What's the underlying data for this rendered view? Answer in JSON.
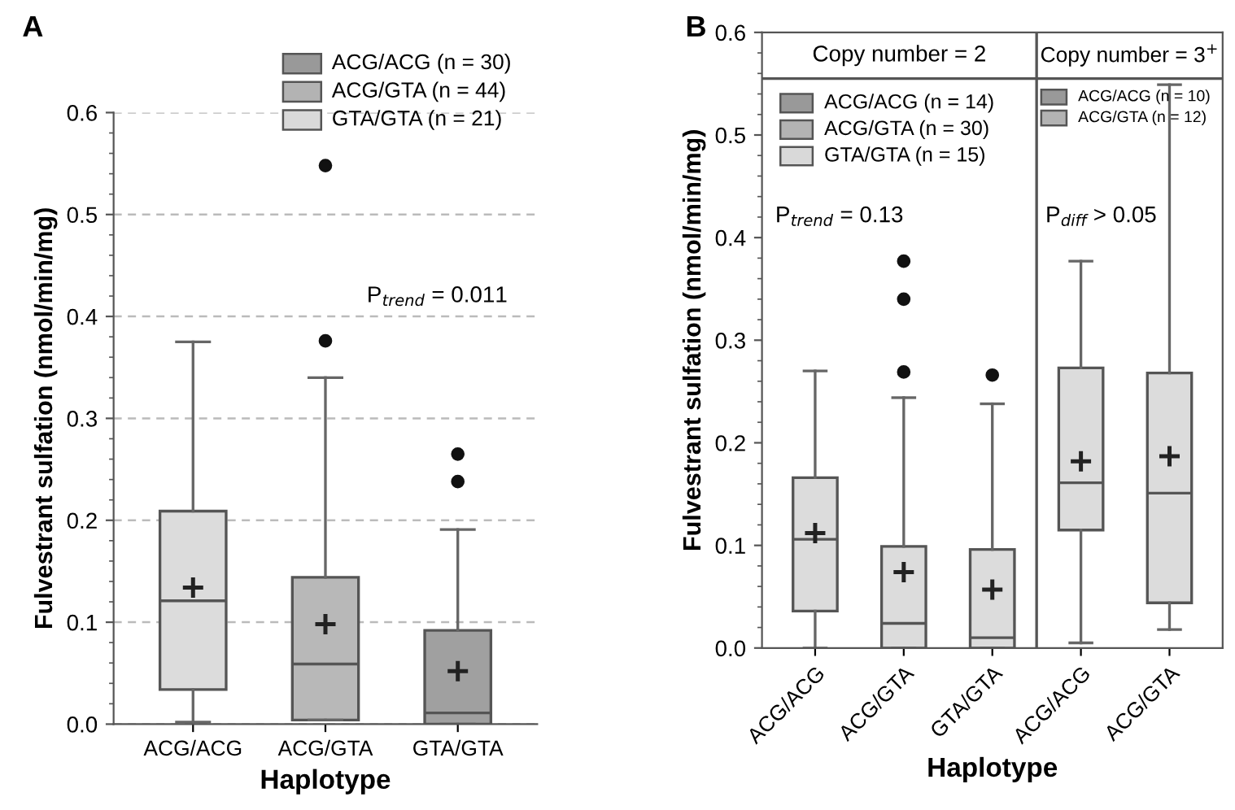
{
  "chart_data": [
    {
      "type": "box",
      "title": "A",
      "xlabel": "Haplotype",
      "ylabel": "Fulvestrant sulfation (nmol/min/mg)",
      "categories": [
        "ACG/ACG",
        "ACG/GTA",
        "GTA/GTA"
      ],
      "boxes": [
        {
          "low": 0.002,
          "q1": 0.034,
          "median": 0.121,
          "q3": 0.209,
          "high": 0.375,
          "mean": 0.134
        },
        {
          "low": 0.004,
          "q1": 0.004,
          "median": 0.059,
          "q3": 0.144,
          "high": 0.34,
          "mean": 0.098,
          "outliers": [
            0.376,
            0.548
          ]
        },
        {
          "low": 0.0,
          "q1": 0.0,
          "median": 0.011,
          "q3": 0.092,
          "high": 0.191,
          "mean": 0.052,
          "outliers": [
            0.238,
            0.265
          ]
        }
      ],
      "colors": [
        "#dcdcdc",
        "#b8b8b8",
        "#a0a0a0"
      ],
      "annotations": [
        "ACG/ACG (n = 30)",
        "ACG/GTA (n = 44)",
        "GTA/GTA (n = 21)",
        "P$_{trend}$ = 0.011"
      ],
      "ylim": [
        0,
        0.6
      ],
      "yticks": [
        {
          "value": 0,
          "label": "0.0"
        },
        0.1,
        0.2,
        0.3,
        0.4,
        0.5,
        0.6
      ],
      "grid": "y"
    },
    {
      "type": "box",
      "title": "B",
      "xlabel": "Haplotype",
      "ylabel": "Fulvestrant sulfation (nmol/min/mg)",
      "categories": [
        "ACG/ACG",
        "ACG/GTA",
        "GTA/GTA",
        "ACG/ACG",
        "ACG/GTA"
      ],
      "boxes": [
        {
          "low": 0.0,
          "q1": 0.036,
          "median": 0.106,
          "q3": 0.166,
          "high": 0.27,
          "mean": 0.112
        },
        {
          "low": 0.0,
          "q1": 0.0,
          "median": 0.024,
          "q3": 0.099,
          "high": 0.244,
          "mean": 0.074,
          "outliers": [
            0.269,
            0.34,
            0.377
          ]
        },
        {
          "low": 0.0,
          "q1": 0.0,
          "median": 0.01,
          "q3": 0.096,
          "high": 0.238,
          "mean": 0.057,
          "outliers": [
            0.266
          ]
        },
        {
          "low": 0.005,
          "q1": 0.115,
          "median": 0.161,
          "q3": 0.273,
          "high": 0.377,
          "mean": 0.182
        },
        {
          "low": 0.018,
          "q1": 0.044,
          "median": 0.151,
          "q3": 0.268,
          "high": 0.549,
          "mean": 0.187
        }
      ],
      "colors": [
        "#dcdcdc",
        "#dcdcdc",
        "#dcdcdc",
        "#dcdcdc",
        "#dcdcdc"
      ],
      "annotations": [
        "Copy number = 2",
        "Copy number = 3$^{+}$",
        "ACG/ACG (n = 14)",
        "ACG/GTA (n = 30)",
        "GTA/GTA (n = 15)",
        "ACG/ACG (n = 10)",
        "ACG/GTA (n = 12)",
        "P$_{trend}$ = 0.13",
        "P$_{diff}$ > 0.05"
      ],
      "ylim": [
        0,
        0.6
      ],
      "yticks": [
        {
          "value": 0,
          "label": "0.0"
        },
        0.1,
        0.2,
        0.3,
        0.4,
        0.5,
        0.6
      ],
      "grid": false
    }
  ]
}
